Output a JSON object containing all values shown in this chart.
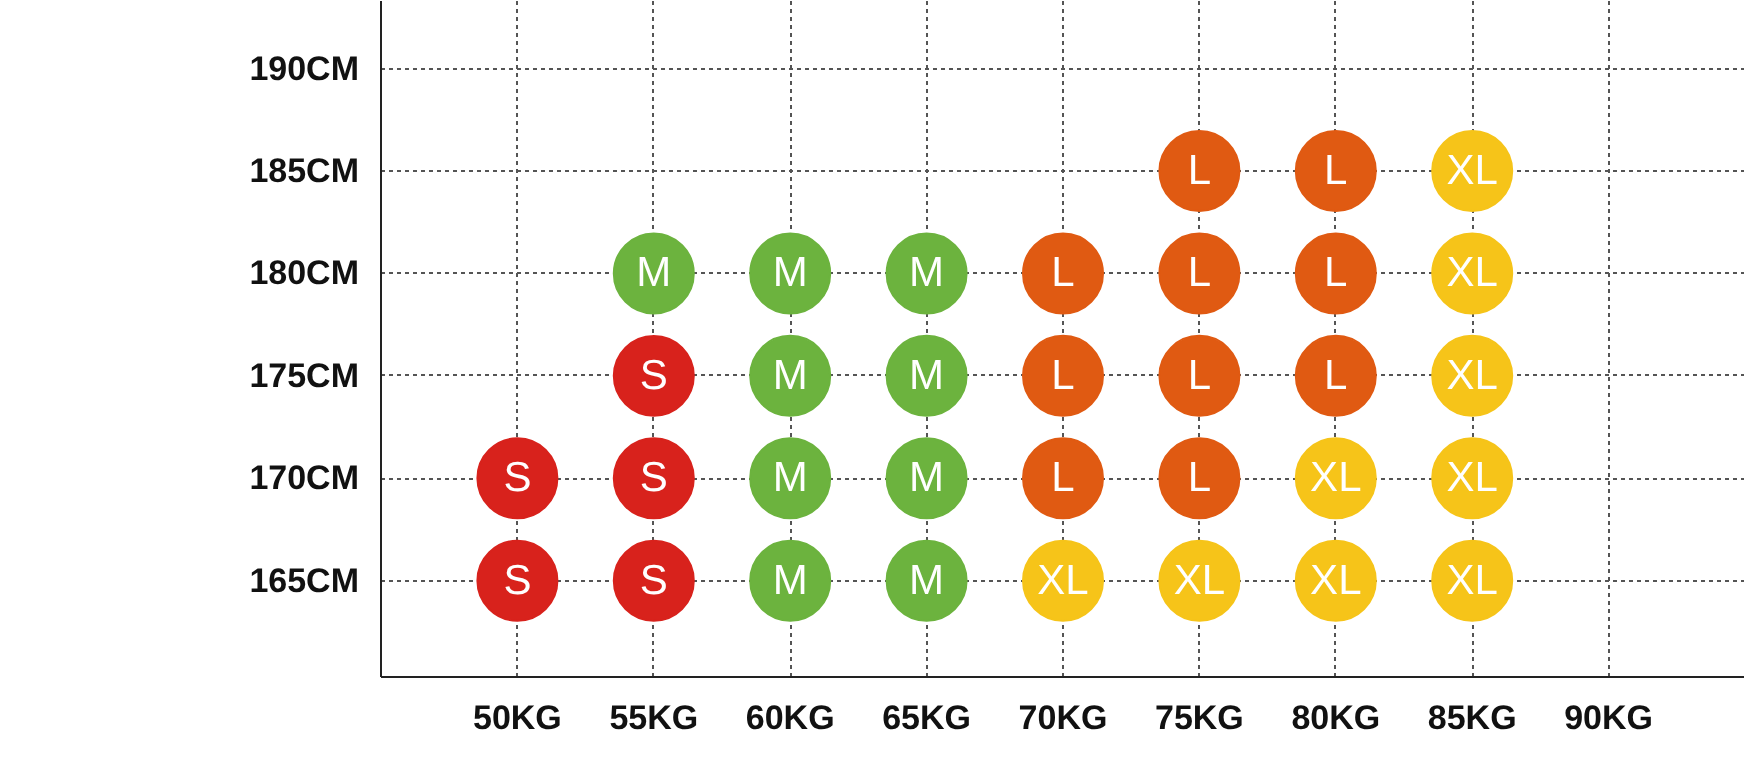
{
  "chart_data": {
    "type": "scatter",
    "marker": "circle",
    "grid": true,
    "xlim": [
      45,
      95
    ],
    "ylim": [
      160.3,
      193.3
    ],
    "xticks": [
      {
        "value": 50,
        "label": "50KG"
      },
      {
        "value": 55,
        "label": "55KG"
      },
      {
        "value": 60,
        "label": "60KG"
      },
      {
        "value": 65,
        "label": "65KG"
      },
      {
        "value": 70,
        "label": "70KG"
      },
      {
        "value": 75,
        "label": "75KG"
      },
      {
        "value": 80,
        "label": "80KG"
      },
      {
        "value": 85,
        "label": "85KG"
      },
      {
        "value": 90,
        "label": "90KG"
      }
    ],
    "yticks": [
      {
        "value": 165,
        "label": "165CM"
      },
      {
        "value": 170,
        "label": "170CM"
      },
      {
        "value": 175,
        "label": "175CM"
      },
      {
        "value": 180,
        "label": "180CM"
      },
      {
        "value": 185,
        "label": "185CM"
      },
      {
        "value": 190,
        "label": "190CM"
      }
    ],
    "series": [
      {
        "name": "S",
        "color": "#d8221c",
        "x": [
          50,
          50,
          55,
          55,
          55
        ],
        "values": [
          170,
          165,
          175,
          170,
          165
        ]
      },
      {
        "name": "M",
        "color": "#6cb33e",
        "x": [
          55,
          60,
          60,
          60,
          60,
          65,
          65,
          65,
          65
        ],
        "values": [
          180,
          180,
          175,
          170,
          165,
          180,
          175,
          170,
          165
        ]
      },
      {
        "name": "L",
        "color": "#e05a12",
        "x": [
          70,
          70,
          70,
          75,
          75,
          75,
          75,
          80,
          80,
          80
        ],
        "values": [
          180,
          175,
          170,
          185,
          180,
          175,
          170,
          185,
          180,
          175
        ]
      },
      {
        "name": "XL",
        "color": "#f6c419",
        "x": [
          70,
          75,
          80,
          80,
          85,
          85,
          85,
          85,
          85
        ],
        "values": [
          165,
          165,
          170,
          165,
          185,
          180,
          175,
          170,
          165
        ]
      }
    ]
  }
}
